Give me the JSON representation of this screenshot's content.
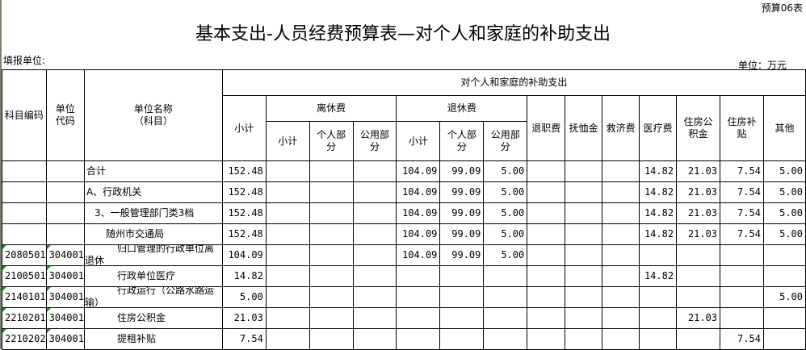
{
  "form_code": "预算06表",
  "title": "基本支出-人员经费预算表—对个人和家庭的补助支出",
  "filler_label": "填报单位:",
  "unit_label": "单位：万元",
  "headers": {
    "subject_code": "科目编码",
    "unit_code": "单位代码",
    "unit_name": "单位名称（科目）",
    "group": "对个人和家庭的补助支出",
    "subtotal": "小计",
    "retire_li": "离休费",
    "retire_tui": "退休费",
    "sub_subtotal": "小计",
    "personal": "个人部分",
    "public": "公用部分",
    "tuizhi": "退职费",
    "fuxu": "抚恤金",
    "jiuji": "救济费",
    "yiliao": "医疗费",
    "gjj": "住房公积金",
    "zfbt": "住房补贴",
    "other": "其他"
  },
  "rows": [
    {
      "code": "",
      "unit": "",
      "name": "合计",
      "indent": 0,
      "v": [
        "152.48",
        "",
        "",
        "",
        "104.09",
        "99.09",
        "5.00",
        "",
        "",
        "",
        "14.82",
        "21.03",
        "7.54",
        "5.00"
      ]
    },
    {
      "code": "",
      "unit": "",
      "name": "A、行政机关",
      "indent": 0,
      "v": [
        "152.48",
        "",
        "",
        "",
        "104.09",
        "99.09",
        "5.00",
        "",
        "",
        "",
        "14.82",
        "21.03",
        "7.54",
        "5.00"
      ]
    },
    {
      "code": "",
      "unit": "",
      "name": "3、一般管理部门类3档",
      "indent": 1,
      "v": [
        "152.48",
        "",
        "",
        "",
        "104.09",
        "99.09",
        "5.00",
        "",
        "",
        "",
        "14.82",
        "21.03",
        "7.54",
        "5.00"
      ]
    },
    {
      "code": "",
      "unit": "",
      "name": "随州市交通局",
      "indent": 2,
      "v": [
        "152.48",
        "",
        "",
        "",
        "104.09",
        "99.09",
        "5.00",
        "",
        "",
        "",
        "14.82",
        "21.03",
        "7.54",
        "5.00"
      ]
    },
    {
      "code": "2080501",
      "unit": "304001",
      "name": "归口管理的行政单位离退休",
      "indent": 3,
      "v": [
        "104.09",
        "",
        "",
        "",
        "104.09",
        "99.09",
        "5.00",
        "",
        "",
        "",
        "",
        "",
        "",
        ""
      ]
    },
    {
      "code": "2100501",
      "unit": "304001",
      "name": "行政单位医疗",
      "indent": 3,
      "v": [
        "14.82",
        "",
        "",
        "",
        "",
        "",
        "",
        "",
        "",
        "",
        "14.82",
        "",
        "",
        ""
      ]
    },
    {
      "code": "2140101",
      "unit": "304001",
      "name": "行政运行（公路水路运输）",
      "indent": 3,
      "v": [
        "5.00",
        "",
        "",
        "",
        "",
        "",
        "",
        "",
        "",
        "",
        "",
        "",
        "",
        "5.00"
      ]
    },
    {
      "code": "2210201",
      "unit": "304001",
      "name": "住房公积金",
      "indent": 3,
      "v": [
        "21.03",
        "",
        "",
        "",
        "",
        "",
        "",
        "",
        "",
        "",
        "",
        "21.03",
        "",
        ""
      ]
    },
    {
      "code": "2210202",
      "unit": "304001",
      "name": "提租补贴",
      "indent": 3,
      "v": [
        "7.54",
        "",
        "",
        "",
        "",
        "",
        "",
        "",
        "",
        "",
        "",
        "",
        "7.54",
        ""
      ]
    }
  ]
}
